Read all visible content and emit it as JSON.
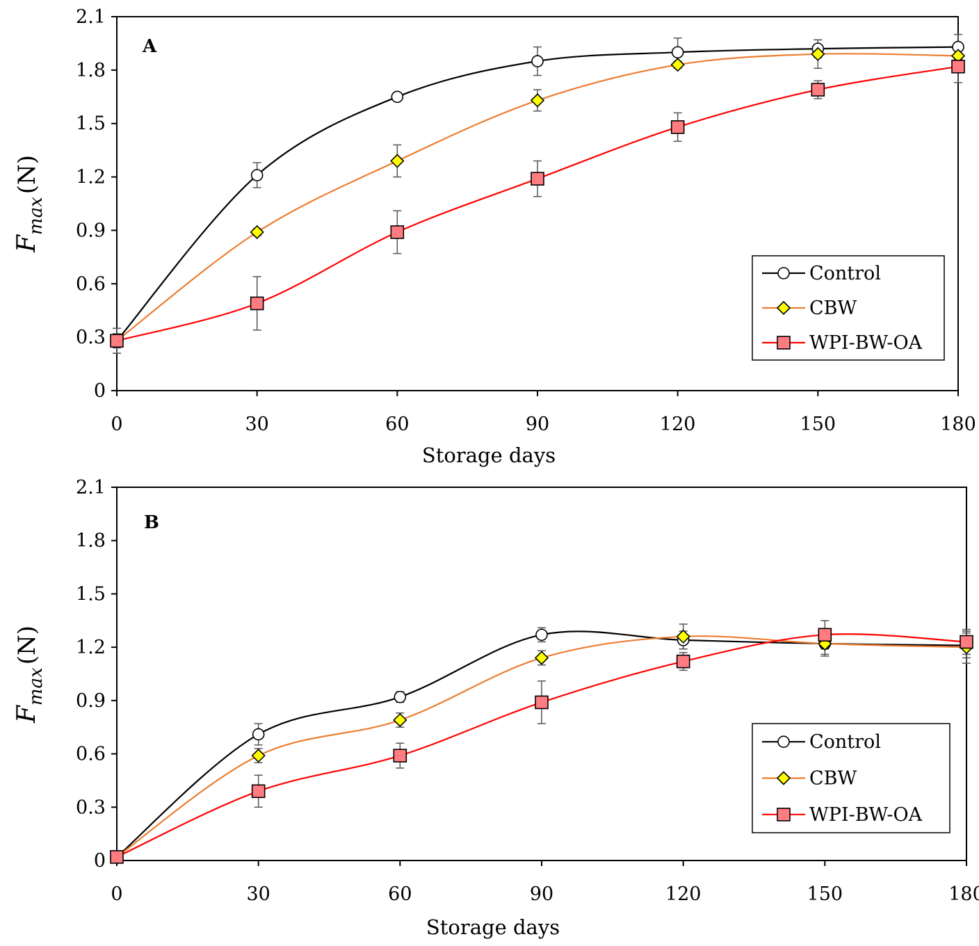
{
  "chart_data": [
    {
      "type": "line",
      "panel_label": "A",
      "xlabel": "Storage days",
      "ylabel": {
        "main": "F",
        "sub": "max",
        "unit": "(N)"
      },
      "xlim": [
        0,
        180
      ],
      "ylim": [
        0,
        2.1
      ],
      "x_ticks": [
        0,
        30,
        60,
        90,
        120,
        150,
        180
      ],
      "x_tick_labels": [
        "0",
        "30",
        "60",
        "90",
        "120",
        "150",
        "180"
      ],
      "y_ticks": [
        0,
        0.3,
        0.6,
        0.9,
        1.2,
        1.5,
        1.8,
        2.1
      ],
      "y_tick_labels": [
        "0",
        "0.3",
        "0.6",
        "0.9",
        "1.2",
        "1.5",
        "1.8",
        "2.1"
      ],
      "grid": false,
      "legend_position": "right",
      "series": [
        {
          "name": "Control",
          "marker": "circle",
          "color": "#000000",
          "marker_fill": "#ffffff",
          "x": [
            0,
            30,
            60,
            90,
            120,
            150,
            180
          ],
          "values": [
            0.28,
            1.21,
            1.65,
            1.85,
            1.9,
            1.92,
            1.93
          ],
          "errors": [
            0.07,
            0.07,
            0.02,
            0.08,
            0.08,
            0.05,
            0.07
          ]
        },
        {
          "name": "CBW",
          "marker": "diamond",
          "color": "#ed7d31",
          "marker_fill": "#ffff00",
          "x": [
            0,
            30,
            60,
            90,
            120,
            150,
            180
          ],
          "values": [
            0.28,
            0.89,
            1.29,
            1.63,
            1.83,
            1.89,
            1.88
          ],
          "errors": [
            0.04,
            0.02,
            0.09,
            0.06,
            0.02,
            0.08,
            0.03
          ]
        },
        {
          "name": "WPI-BW-OA",
          "marker": "square",
          "color": "#ff0000",
          "marker_fill": "#ff7c80",
          "x": [
            0,
            30,
            60,
            90,
            120,
            150,
            180
          ],
          "values": [
            0.28,
            0.49,
            0.89,
            1.19,
            1.48,
            1.69,
            1.82
          ],
          "errors": [
            0.07,
            0.15,
            0.12,
            0.1,
            0.08,
            0.05,
            0.09
          ]
        }
      ]
    },
    {
      "type": "line",
      "panel_label": "B",
      "xlabel": "Storage days",
      "ylabel": {
        "main": "F",
        "sub": "max",
        "unit": "(N)"
      },
      "xlim": [
        0,
        180
      ],
      "ylim": [
        0,
        2.1
      ],
      "x_ticks": [
        0,
        30,
        60,
        90,
        120,
        150,
        180
      ],
      "x_tick_labels": [
        "0",
        "30",
        "60",
        "90",
        "120",
        "150",
        "180"
      ],
      "y_ticks": [
        0,
        0.3,
        0.6,
        0.9,
        1.2,
        1.5,
        1.8,
        2.1
      ],
      "y_tick_labels": [
        "0",
        "0.3",
        "0.6",
        "0.9",
        "1.2",
        "1.5",
        "1.8",
        "2.1"
      ],
      "grid": false,
      "legend_position": "right",
      "series": [
        {
          "name": "Control",
          "marker": "circle",
          "color": "#000000",
          "marker_fill": "#ffffff",
          "x": [
            0,
            30,
            60,
            90,
            120,
            150,
            180
          ],
          "values": [
            0.02,
            0.71,
            0.92,
            1.27,
            1.24,
            1.22,
            1.21
          ],
          "errors": [
            0.02,
            0.06,
            0.03,
            0.04,
            0.05,
            0.06,
            0.07
          ]
        },
        {
          "name": "CBW",
          "marker": "diamond",
          "color": "#ed7d31",
          "marker_fill": "#ffff00",
          "x": [
            0,
            30,
            60,
            90,
            120,
            150,
            180
          ],
          "values": [
            0.02,
            0.59,
            0.79,
            1.14,
            1.26,
            1.22,
            1.2
          ],
          "errors": [
            0.02,
            0.04,
            0.04,
            0.04,
            0.07,
            0.07,
            0.09
          ]
        },
        {
          "name": "WPI-BW-OA",
          "marker": "square",
          "color": "#ff0000",
          "marker_fill": "#ff7c80",
          "x": [
            0,
            30,
            60,
            90,
            120,
            150,
            180
          ],
          "values": [
            0.02,
            0.39,
            0.59,
            0.89,
            1.12,
            1.27,
            1.23
          ],
          "errors": [
            0.02,
            0.09,
            0.07,
            0.12,
            0.05,
            0.08,
            0.07
          ]
        }
      ]
    }
  ]
}
